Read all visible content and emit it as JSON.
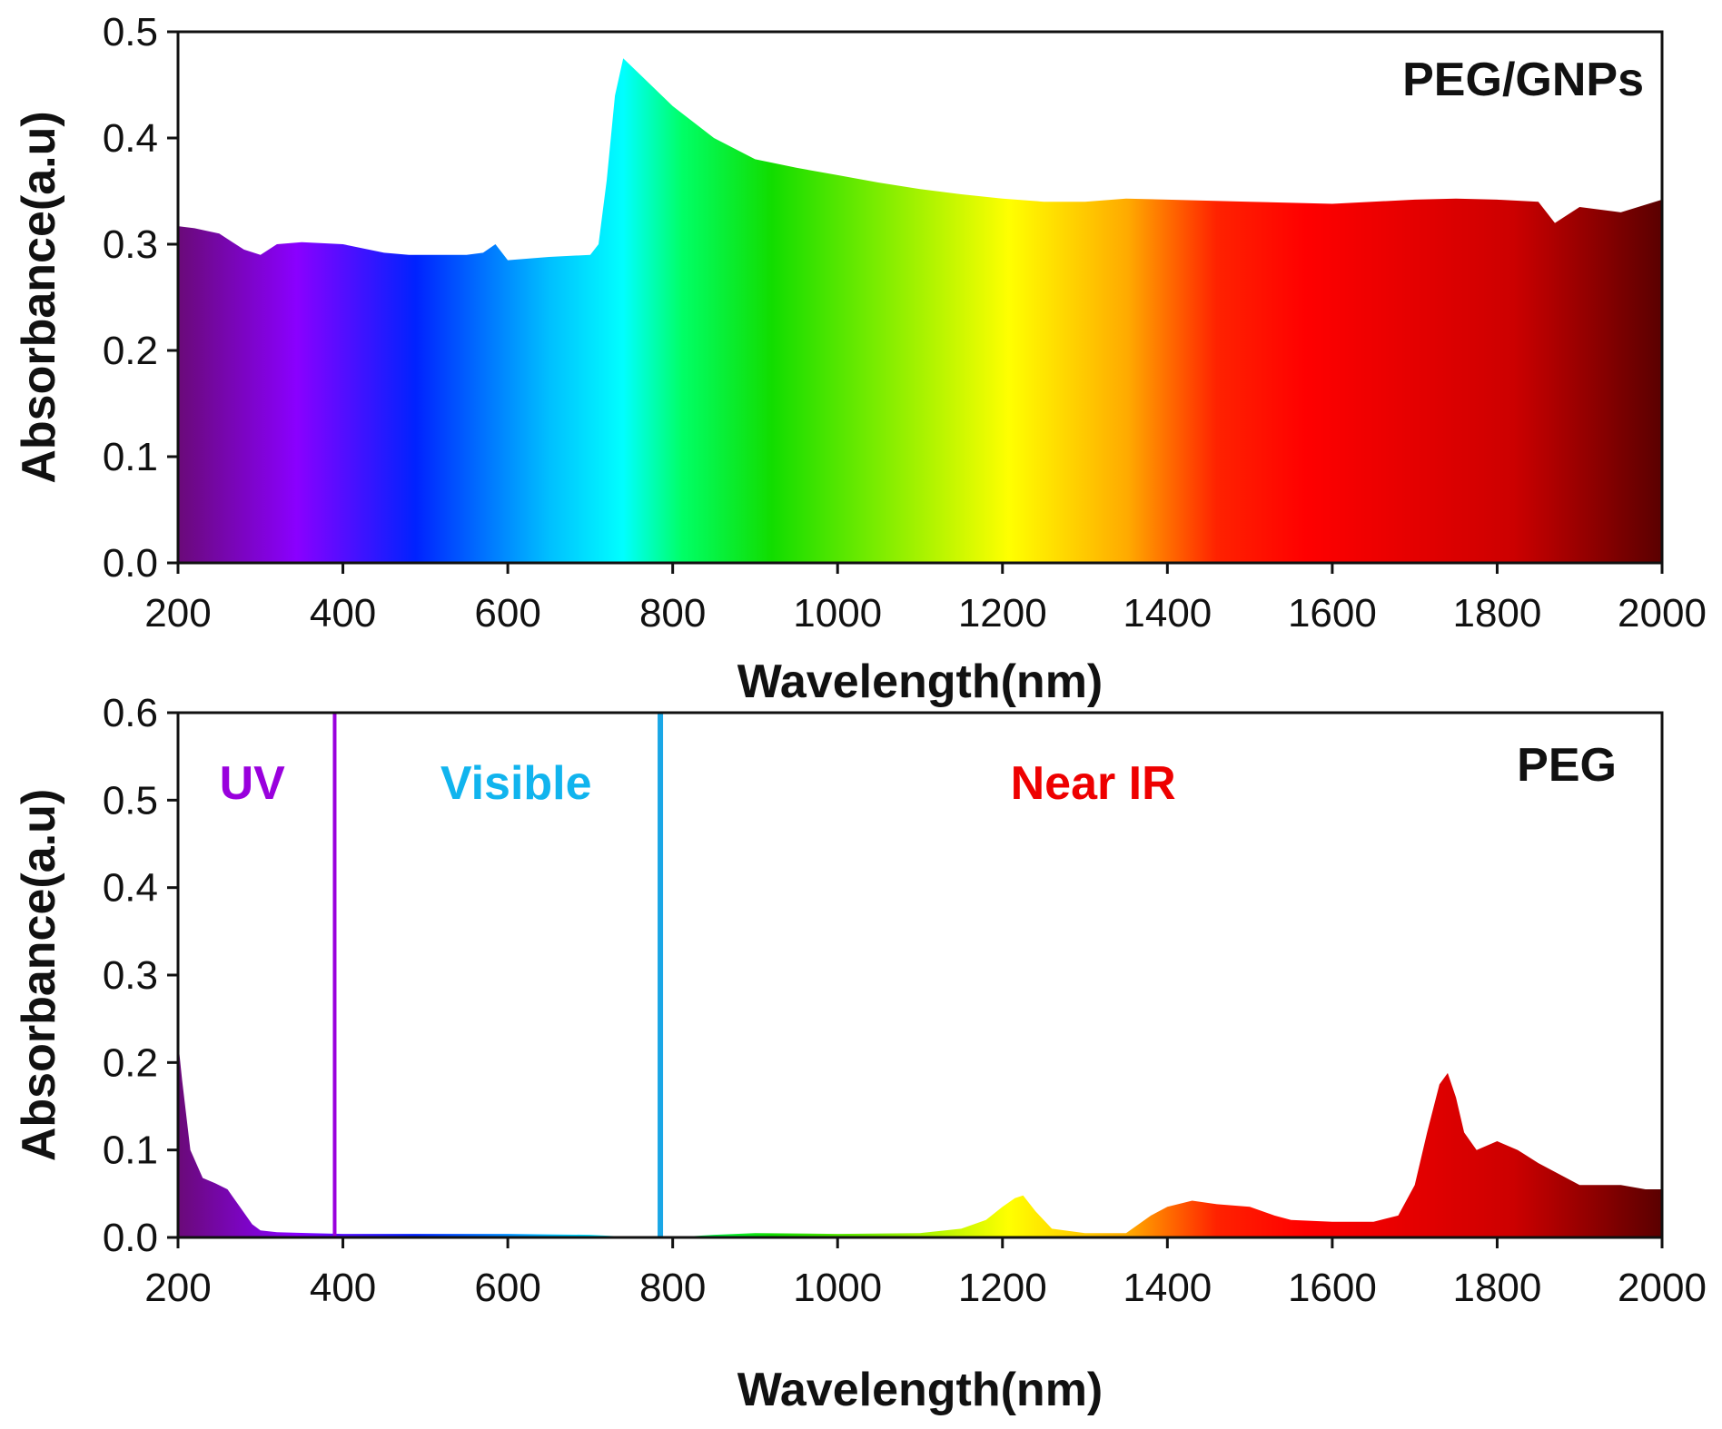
{
  "colors": {
    "spectrum": [
      "#6a0a78",
      "#8a00ff",
      "#0022ff",
      "#00bfff",
      "#00ffff",
      "#00ff66",
      "#11dd00",
      "#88ee00",
      "#ffff00",
      "#ffaa00",
      "#ff2200",
      "#ff0000",
      "#cc0000",
      "#5a0000"
    ],
    "uv_line": "#9900dd",
    "visible_line": "#1aa7e6",
    "uv_label": "#9900dd",
    "visible_label": "#11b4ee",
    "nearir_label": "#ee0000"
  },
  "chart_data": [
    {
      "type": "area",
      "panel_label": "PEG/GNPs",
      "xlabel": "Wavelength(nm)",
      "ylabel": "Absorbance(a.u)",
      "xlim": [
        200,
        2000
      ],
      "ylim": [
        0,
        0.5
      ],
      "xticks": [
        "200",
        "400",
        "600",
        "800",
        "1000",
        "1200",
        "1400",
        "1600",
        "1800",
        "2000"
      ],
      "yticks": [
        "0.0",
        "0.1",
        "0.2",
        "0.3",
        "0.4",
        "0.5"
      ],
      "x": [
        200,
        220,
        250,
        280,
        300,
        320,
        350,
        400,
        450,
        480,
        500,
        550,
        570,
        585,
        600,
        650,
        700,
        710,
        720,
        730,
        740,
        760,
        800,
        850,
        900,
        950,
        1000,
        1050,
        1100,
        1150,
        1200,
        1250,
        1300,
        1350,
        1400,
        1500,
        1600,
        1700,
        1750,
        1800,
        1850,
        1870,
        1900,
        1950,
        2000
      ],
      "y": [
        0.317,
        0.315,
        0.31,
        0.295,
        0.29,
        0.3,
        0.302,
        0.3,
        0.292,
        0.29,
        0.29,
        0.29,
        0.292,
        0.3,
        0.285,
        0.288,
        0.29,
        0.3,
        0.36,
        0.44,
        0.475,
        0.46,
        0.43,
        0.4,
        0.38,
        0.372,
        0.365,
        0.358,
        0.352,
        0.347,
        0.343,
        0.34,
        0.34,
        0.343,
        0.342,
        0.34,
        0.338,
        0.342,
        0.343,
        0.342,
        0.34,
        0.32,
        0.335,
        0.33,
        0.342
      ]
    },
    {
      "type": "area",
      "panel_label": "PEG",
      "xlabel": "Wavelength(nm)",
      "ylabel": "Absorbance(a.u)",
      "xlim": [
        200,
        2000
      ],
      "ylim": [
        0,
        0.6
      ],
      "xticks": [
        "200",
        "400",
        "600",
        "800",
        "1000",
        "1200",
        "1400",
        "1600",
        "1800",
        "2000"
      ],
      "yticks": [
        "0.0",
        "0.1",
        "0.2",
        "0.3",
        "0.4",
        "0.5",
        "0.6"
      ],
      "regions": [
        {
          "label": "UV",
          "label_x": 290
        },
        {
          "label": "Visible",
          "label_x": 610
        },
        {
          "label": "Near IR",
          "label_x": 1310
        }
      ],
      "boundaries": [
        390,
        785
      ],
      "x": [
        200,
        205,
        215,
        230,
        245,
        260,
        275,
        290,
        300,
        320,
        360,
        400,
        500,
        600,
        700,
        760,
        800,
        850,
        900,
        1000,
        1100,
        1150,
        1180,
        1200,
        1215,
        1225,
        1240,
        1260,
        1300,
        1350,
        1380,
        1400,
        1430,
        1460,
        1500,
        1530,
        1550,
        1600,
        1650,
        1680,
        1700,
        1715,
        1730,
        1740,
        1750,
        1760,
        1775,
        1800,
        1825,
        1850,
        1880,
        1900,
        1950,
        1980,
        2000
      ],
      "y": [
        0.225,
        0.18,
        0.1,
        0.068,
        0.062,
        0.055,
        0.035,
        0.015,
        0.008,
        0.006,
        0.005,
        0.004,
        0.004,
        0.004,
        0.003,
        0.0,
        0.0,
        0.003,
        0.005,
        0.004,
        0.005,
        0.01,
        0.02,
        0.035,
        0.045,
        0.048,
        0.03,
        0.01,
        0.005,
        0.005,
        0.025,
        0.035,
        0.042,
        0.038,
        0.035,
        0.025,
        0.02,
        0.018,
        0.018,
        0.025,
        0.06,
        0.12,
        0.175,
        0.188,
        0.16,
        0.12,
        0.1,
        0.11,
        0.1,
        0.085,
        0.07,
        0.06,
        0.06,
        0.055,
        0.055
      ]
    }
  ]
}
